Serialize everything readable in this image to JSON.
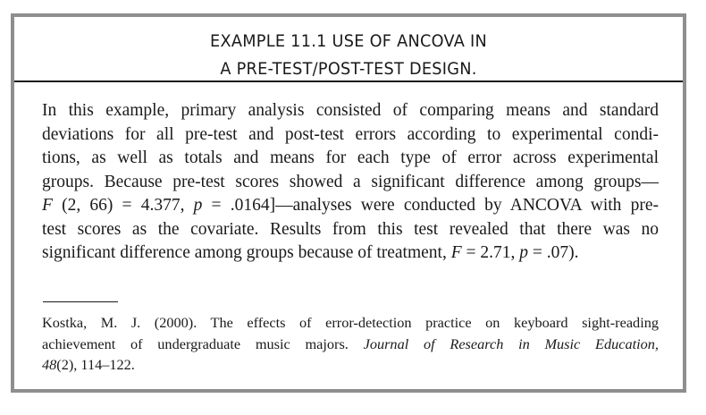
{
  "example": {
    "title_lines": [
      "EXAMPLE 11.1  USE OF ANCOVA IN",
      "A PRE-TEST/POST-TEST DESIGN."
    ],
    "body_lines": [
      [
        {
          "t": "In this example, primary analysis consisted of comparing means and standard"
        }
      ],
      [
        {
          "t": "deviations for all pre-test and post-test errors according to experimental condi-"
        }
      ],
      [
        {
          "t": "tions, as well as totals and means for each type of error across experimental"
        }
      ],
      [
        {
          "t": "groups. Because pre-test scores showed a significant difference among groups—"
        }
      ],
      [
        {
          "t": "F",
          "i": true
        },
        {
          "t": " (2, 66) = 4.377, "
        },
        {
          "t": "p",
          "i": true
        },
        {
          "t": " = .0164]—analyses were conducted by ANCOVA with pre-"
        }
      ],
      [
        {
          "t": "test scores as the covariate. Results from this test revealed that there was no"
        }
      ],
      [
        {
          "t": "significant difference among groups because of treatment, "
        },
        {
          "t": "F",
          "i": true
        },
        {
          "t": " = 2.71, "
        },
        {
          "t": "p",
          "i": true
        },
        {
          "t": " = .07)."
        }
      ]
    ],
    "citation_lines": [
      [
        {
          "t": "Kostka, M. J. (2000). The effects of error-detection practice on keyboard sight-reading"
        }
      ],
      [
        {
          "t": "achievement of undergraduate music majors. "
        },
        {
          "t": "Journal of Research in Music Education,",
          "i": true
        }
      ],
      [
        {
          "t": "48",
          "i": true
        },
        {
          "t": "(2), 114–122."
        }
      ]
    ]
  },
  "colors": {
    "border": "#8e8e90",
    "text": "#1a1a1a"
  }
}
